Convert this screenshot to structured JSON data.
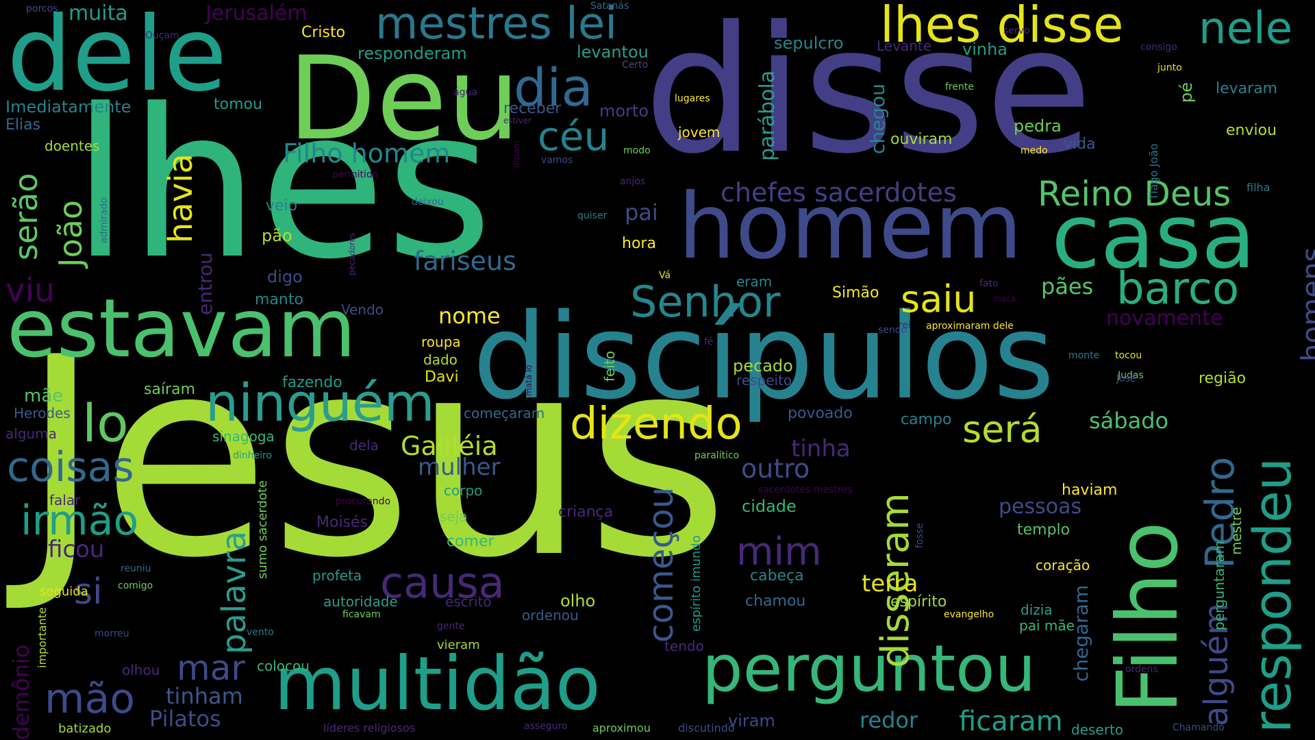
{
  "palette": {
    "background": "#000000",
    "purple": "#440154",
    "violet": "#482878",
    "indigo": "#3e4a89",
    "blue": "#31688e",
    "teal": "#26828e",
    "green": "#1f9e89",
    "mint": "#35b779",
    "lime": "#6ece58",
    "yellowgreen": "#b5de2b",
    "yellow": "#fde725"
  },
  "words": [
    {
      "text": "Jesus"
    },
    {
      "text": "lhes"
    },
    {
      "text": "disse"
    },
    {
      "text": "discípulos"
    },
    {
      "text": "Deu"
    },
    {
      "text": "dele"
    },
    {
      "text": "homem"
    },
    {
      "text": "estavam"
    },
    {
      "text": "casa"
    },
    {
      "text": "multidão"
    },
    {
      "text": "Filho"
    },
    {
      "text": "perguntou"
    },
    {
      "text": "respondeu"
    },
    {
      "text": "lhes disse"
    },
    {
      "text": "mestres lei"
    },
    {
      "text": "ninguém"
    },
    {
      "text": "dia"
    },
    {
      "text": "nele"
    },
    {
      "text": "céu"
    },
    {
      "text": "Senhor"
    },
    {
      "text": "barco"
    },
    {
      "text": "dizendo"
    },
    {
      "text": "lo"
    },
    {
      "text": "coisas"
    },
    {
      "text": "irmão"
    },
    {
      "text": "Reino Deus"
    },
    {
      "text": "saiu"
    },
    {
      "text": "será"
    },
    {
      "text": "disseram"
    },
    {
      "text": "Pedro"
    },
    {
      "text": "causa"
    },
    {
      "text": "mim"
    },
    {
      "text": "mão"
    },
    {
      "text": "havia"
    },
    {
      "text": "palavra"
    },
    {
      "text": "começou"
    },
    {
      "text": "alguém"
    },
    {
      "text": "homens"
    },
    {
      "text": "Filho homem"
    },
    {
      "text": "chefes sacerdotes"
    },
    {
      "text": "viu"
    },
    {
      "text": "si"
    },
    {
      "text": "mar"
    },
    {
      "text": "ficaram"
    },
    {
      "text": "fariseus"
    },
    {
      "text": "serão"
    },
    {
      "text": "João"
    },
    {
      "text": "Galiléia"
    },
    {
      "text": "mulher"
    },
    {
      "text": "outro"
    },
    {
      "text": "tinha"
    },
    {
      "text": "terra"
    },
    {
      "text": "nome"
    },
    {
      "text": "pães"
    },
    {
      "text": "sábado"
    },
    {
      "text": "pessoas"
    },
    {
      "text": "Pilatos"
    },
    {
      "text": "tinham"
    },
    {
      "text": "redor"
    },
    {
      "text": "ficou"
    },
    {
      "text": "muita"
    },
    {
      "text": "Jerusalém"
    },
    {
      "text": "pai"
    },
    {
      "text": "novamente"
    },
    {
      "text": "demônio"
    },
    {
      "text": "entrou"
    },
    {
      "text": "parábola"
    },
    {
      "text": "chegou"
    },
    {
      "text": "chegaram"
    },
    {
      "text": "Imediatamente"
    },
    {
      "text": "Elias"
    },
    {
      "text": "responderam"
    },
    {
      "text": "levantou"
    },
    {
      "text": "sepulcro"
    },
    {
      "text": "vinha"
    },
    {
      "text": "Levante"
    },
    {
      "text": "Cristo"
    },
    {
      "text": "tomou"
    },
    {
      "text": "receber"
    },
    {
      "text": "morto"
    },
    {
      "text": "pé"
    },
    {
      "text": "levaram"
    },
    {
      "text": "doentes"
    },
    {
      "text": "jovem"
    },
    {
      "text": "ouviram"
    },
    {
      "text": "pedra"
    },
    {
      "text": "vida"
    },
    {
      "text": "enviou"
    },
    {
      "text": "pão"
    },
    {
      "text": "veio"
    },
    {
      "text": "hora"
    },
    {
      "text": "digo"
    },
    {
      "text": "manto"
    },
    {
      "text": "eram"
    },
    {
      "text": "Simão"
    },
    {
      "text": "Vendo"
    },
    {
      "text": "roupa"
    },
    {
      "text": "dado"
    },
    {
      "text": "Davi"
    },
    {
      "text": "feito"
    },
    {
      "text": "pecado"
    },
    {
      "text": "respeito"
    },
    {
      "text": "região"
    },
    {
      "text": "mãe"
    },
    {
      "text": "saíram"
    },
    {
      "text": "fazendo"
    },
    {
      "text": "Herodes"
    },
    {
      "text": "alguma"
    },
    {
      "text": "começaram"
    },
    {
      "text": "povoado"
    },
    {
      "text": "campo"
    },
    {
      "text": "sinagoga"
    },
    {
      "text": "dela"
    },
    {
      "text": "cidade"
    },
    {
      "text": "haviam"
    },
    {
      "text": "perguntaram"
    },
    {
      "text": "mestre"
    },
    {
      "text": "templo"
    },
    {
      "text": "criança"
    },
    {
      "text": "Moisés"
    },
    {
      "text": "seja"
    },
    {
      "text": "comer"
    },
    {
      "text": "corpo"
    },
    {
      "text": "falar"
    },
    {
      "text": "sumo sacerdote"
    },
    {
      "text": "profeta"
    },
    {
      "text": "autoridade"
    },
    {
      "text": "escrito"
    },
    {
      "text": "olho"
    },
    {
      "text": "ordenou"
    },
    {
      "text": "cabeça"
    },
    {
      "text": "chamou"
    },
    {
      "text": "espírito"
    },
    {
      "text": "dizia"
    },
    {
      "text": "coração"
    },
    {
      "text": "pai mãe"
    },
    {
      "text": "espírito imundo"
    },
    {
      "text": "seguida"
    },
    {
      "text": "importante"
    },
    {
      "text": "morreu"
    },
    {
      "text": "reuniu"
    },
    {
      "text": "comigo"
    },
    {
      "text": "vento"
    },
    {
      "text": "olhou"
    },
    {
      "text": "colocou"
    },
    {
      "text": "tendo"
    },
    {
      "text": "viram"
    },
    {
      "text": "vieram"
    },
    {
      "text": "gente"
    },
    {
      "text": "ficavam"
    },
    {
      "text": "evangelho"
    },
    {
      "text": "batizado"
    },
    {
      "text": "líderes religiosos"
    },
    {
      "text": "asseguro"
    },
    {
      "text": "aproximou"
    },
    {
      "text": "discutindo"
    },
    {
      "text": "deserto"
    },
    {
      "text": "Chamando"
    },
    {
      "text": "ordens"
    },
    {
      "text": "porcos"
    },
    {
      "text": "Ouçam"
    },
    {
      "text": "Satanás"
    },
    {
      "text": "servo"
    },
    {
      "text": "consigo"
    },
    {
      "text": "junto"
    },
    {
      "text": "Certo"
    },
    {
      "text": "frente"
    },
    {
      "text": "água"
    },
    {
      "text": "lugares"
    },
    {
      "text": "estiver"
    },
    {
      "text": "diziam"
    },
    {
      "text": "modo"
    },
    {
      "text": "medo"
    },
    {
      "text": "vamos"
    },
    {
      "text": "Tiago João"
    },
    {
      "text": "permitido"
    },
    {
      "text": "anjos"
    },
    {
      "text": "filha"
    },
    {
      "text": "admirado"
    },
    {
      "text": "deixou"
    },
    {
      "text": "quiser"
    },
    {
      "text": "pecadores"
    },
    {
      "text": "Vá"
    },
    {
      "text": "fato"
    },
    {
      "text": "maca"
    },
    {
      "text": "rei"
    },
    {
      "text": "sendo"
    },
    {
      "text": "aproximaram dele"
    },
    {
      "text": "fé"
    },
    {
      "text": "monte"
    },
    {
      "text": "Judas"
    },
    {
      "text": "José"
    },
    {
      "text": "tocou"
    },
    {
      "text": "matá lo"
    },
    {
      "text": "dinheiro"
    },
    {
      "text": "paralítico"
    },
    {
      "text": "sacerdotes mestres"
    },
    {
      "text": "fosse"
    },
    {
      "text": "procurando"
    }
  ]
}
